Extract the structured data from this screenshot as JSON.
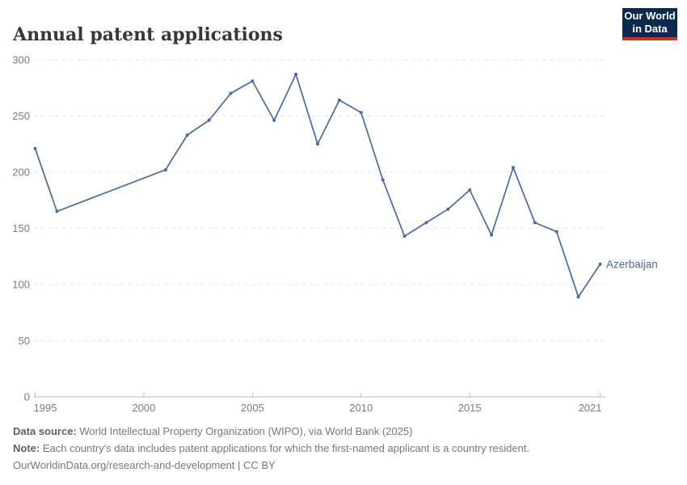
{
  "header": {
    "title": "Annual patent applications"
  },
  "logo": {
    "line1": "Our World",
    "line2": "in Data",
    "bg_color": "#0b2a4c",
    "accent_color": "#c0372c"
  },
  "chart_data": {
    "type": "line",
    "title": "Annual patent applications",
    "xlabel": "",
    "ylabel": "",
    "entity_label": "Azerbaijan",
    "line_color": "#4C6A9C",
    "grid": "horizontal dashed",
    "legend_position": "end-of-line label",
    "xlim": [
      1995,
      2021
    ],
    "ylim": [
      0,
      300
    ],
    "x_ticks": [
      1995,
      2000,
      2005,
      2010,
      2015,
      2021
    ],
    "y_ticks": [
      0,
      50,
      100,
      150,
      200,
      250,
      300
    ],
    "series": [
      {
        "name": "Azerbaijan",
        "points": [
          [
            1995,
            221
          ],
          [
            1996,
            165
          ],
          [
            2001,
            202
          ],
          [
            2002,
            233
          ],
          [
            2003,
            246
          ],
          [
            2004,
            270
          ],
          [
            2005,
            281
          ],
          [
            2006,
            246
          ],
          [
            2007,
            287
          ],
          [
            2008,
            225
          ],
          [
            2009,
            264
          ],
          [
            2010,
            253
          ],
          [
            2011,
            193
          ],
          [
            2012,
            143
          ],
          [
            2013,
            155
          ],
          [
            2014,
            167
          ],
          [
            2015,
            184
          ],
          [
            2016,
            144
          ],
          [
            2017,
            204
          ],
          [
            2018,
            155
          ],
          [
            2019,
            147
          ],
          [
            2020,
            89
          ],
          [
            2021,
            118
          ]
        ]
      }
    ]
  },
  "footer": {
    "source_label": "Data source:",
    "source_text": " World Intellectual Property Organization (WIPO), via World Bank (2025)",
    "note_label": "Note:",
    "note_text": " Each country's data includes patent applications for which the first-named applicant is a country resident.",
    "license_link": "OurWorldinData.org/research-and-development",
    "license_suffix": " | CC BY"
  }
}
